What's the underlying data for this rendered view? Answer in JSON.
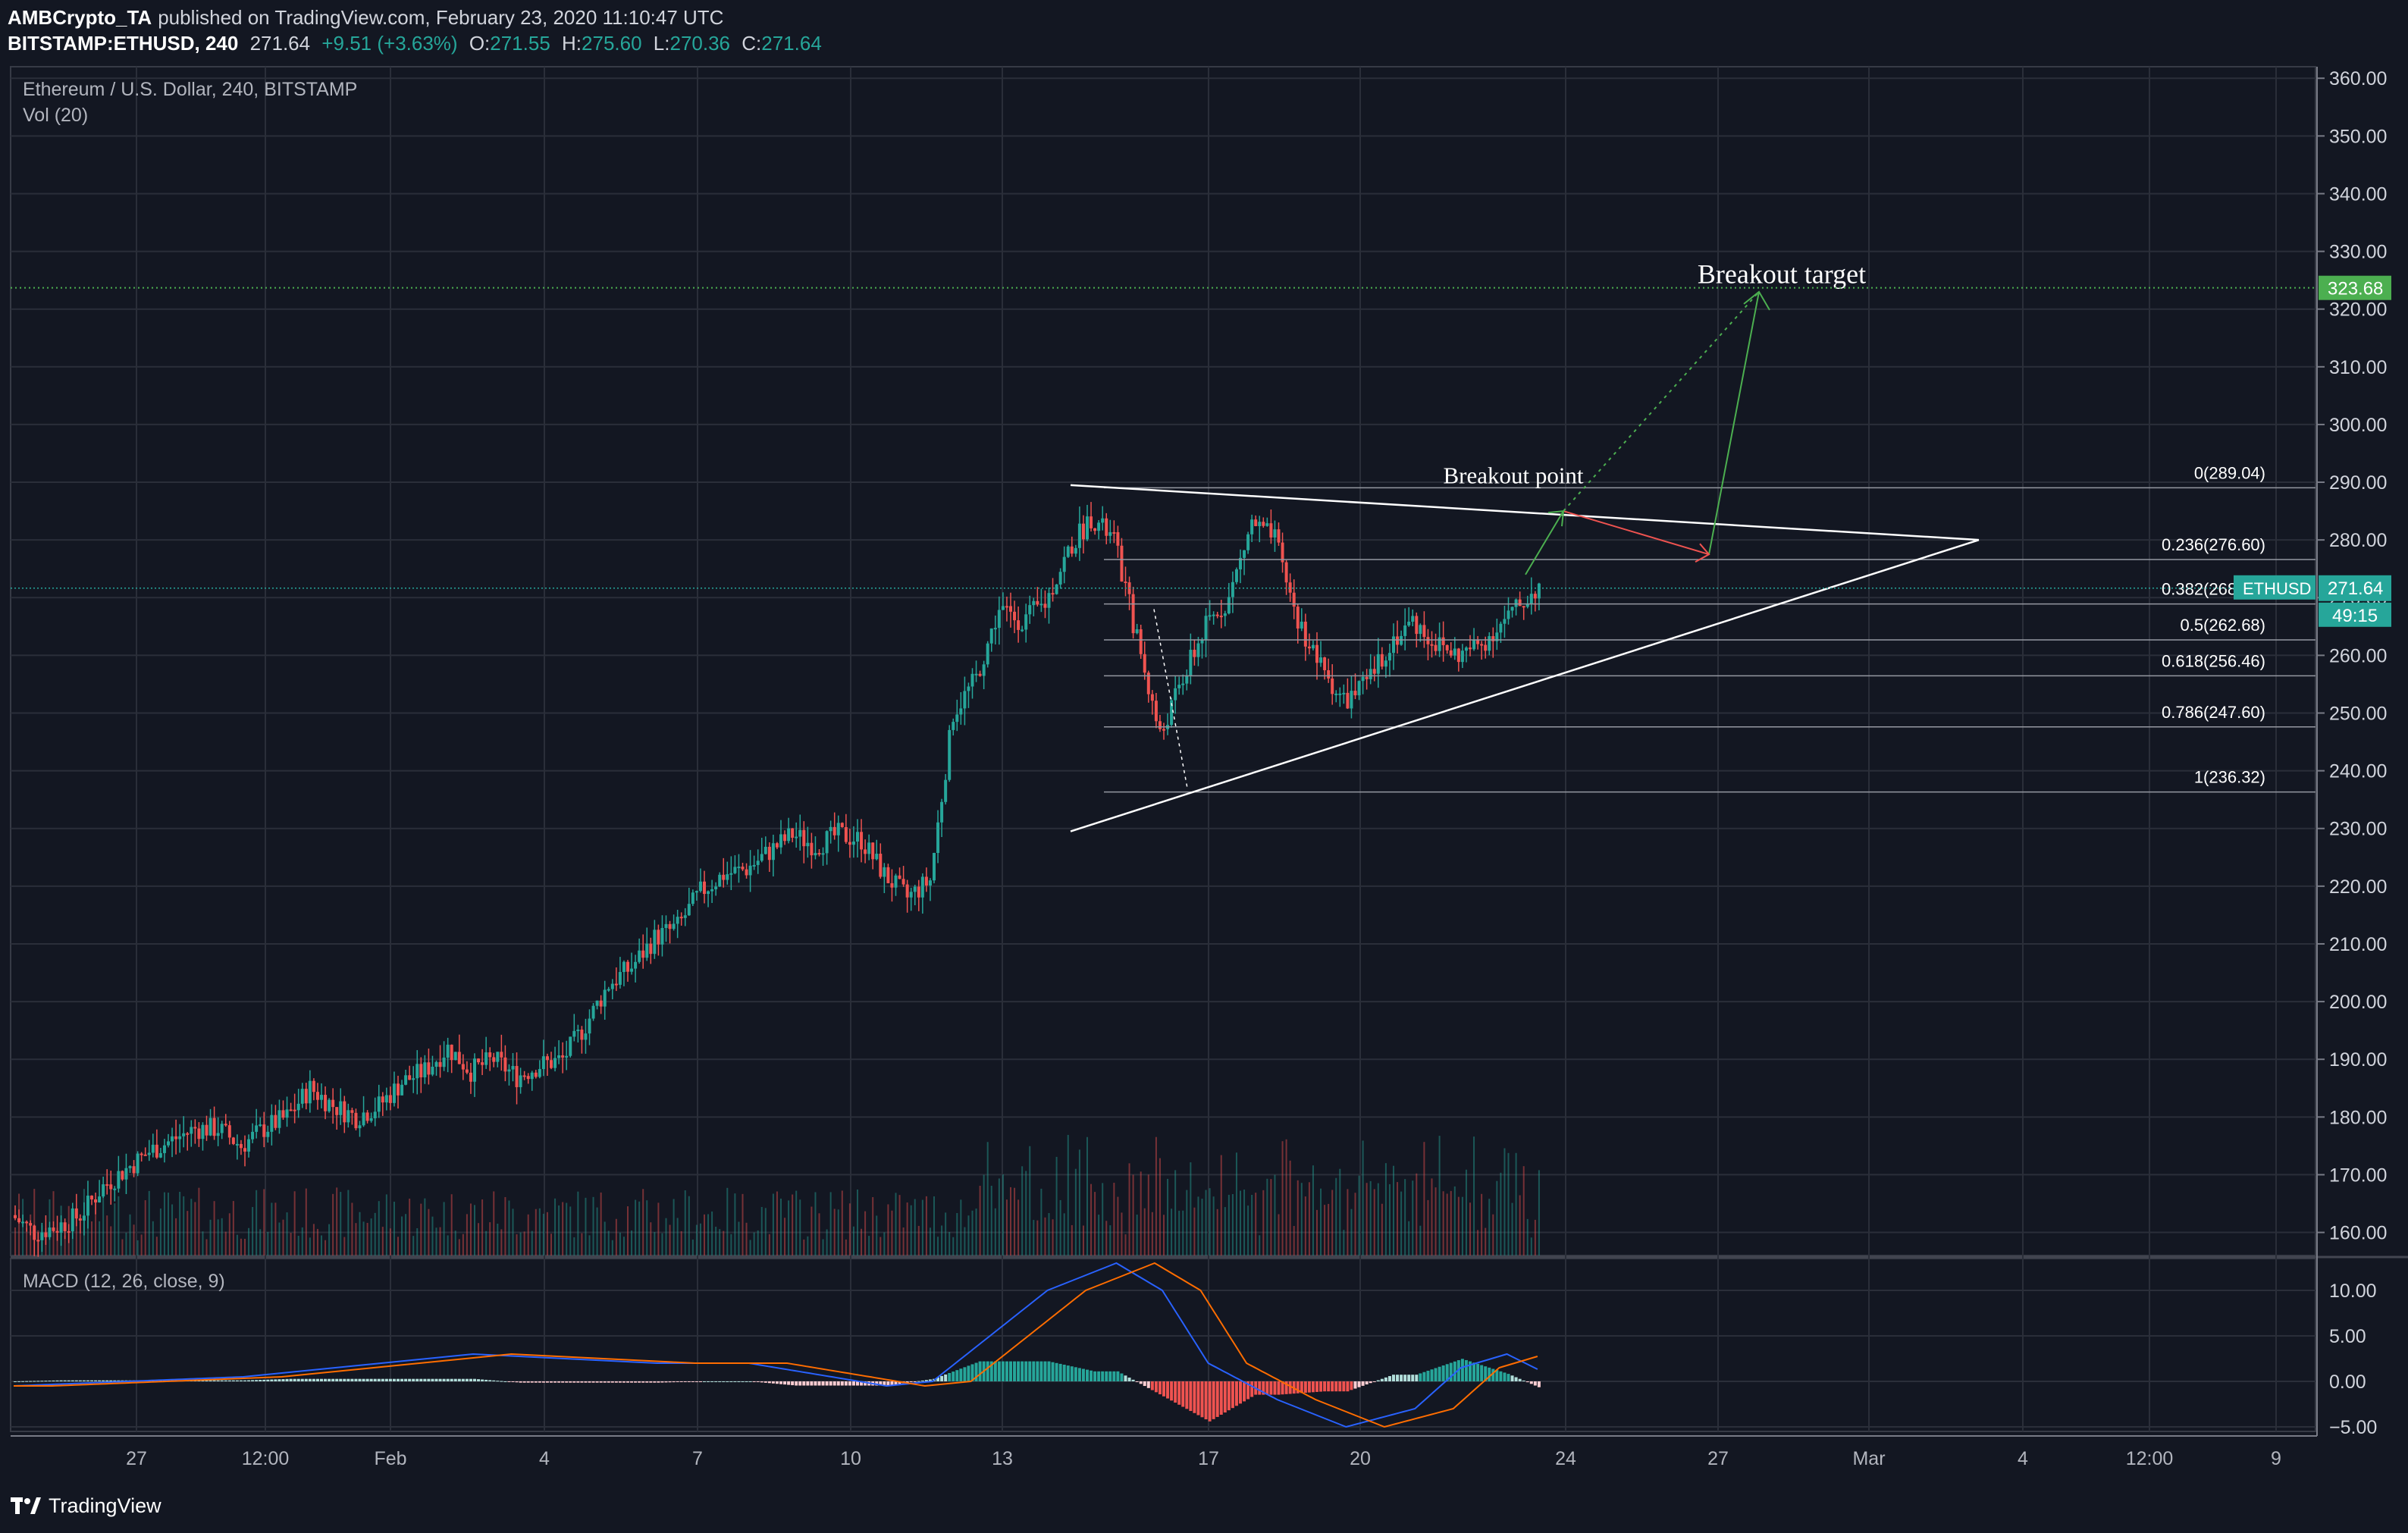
{
  "header": {
    "publisher": "AMBCrypto_TA",
    "published_text": "published on TradingView.com, February 23, 2020 11:10:47 UTC",
    "symbol": "BITSTAMP:ETHUSD, 240",
    "last": "271.64",
    "change": "+9.51 (+3.63%)",
    "open_label": "O:",
    "open": "271.55",
    "high_label": "H:",
    "high": "275.60",
    "low_label": "L:",
    "low": "270.36",
    "close_label": "C:",
    "close": "271.64"
  },
  "pane_legend": {
    "title": "Ethereum / U.S. Dollar, 240, BITSTAMP",
    "volume": "Vol (20)",
    "macd": "MACD (12, 26, close, 9)"
  },
  "footer": {
    "brand": "TradingView"
  },
  "colors": {
    "background": "#131722",
    "up": "#26a69a",
    "down": "#ef5350",
    "grid": "#2a2e39",
    "macd_line": "#2962ff",
    "signal_line": "#ff6d00",
    "target_line": "#4caf50"
  },
  "chart_data": {
    "type": "candlestick",
    "price_axis": {
      "ticks": [
        "360.00",
        "350.00",
        "340.00",
        "330.00",
        "320.00",
        "310.00",
        "300.00",
        "290.00",
        "280.00",
        "270.00",
        "260.00",
        "250.00",
        "240.00",
        "230.00",
        "220.00",
        "210.00",
        "200.00",
        "190.00",
        "180.00",
        "170.00",
        "160.00"
      ],
      "range": [
        156,
        362
      ]
    },
    "macd_axis": {
      "ticks": [
        "10.00",
        "5.00",
        "0.00",
        "−5.00"
      ],
      "range": [
        -5.5,
        13.5
      ]
    },
    "time_axis": {
      "ticks": [
        "27",
        "12:00",
        "Feb",
        "4",
        "7",
        "10",
        "13",
        "17",
        "20",
        "24",
        "27",
        "Mar",
        "4",
        "12:00",
        "9"
      ]
    },
    "last_price_label": "271.64",
    "symbol_label": "ETHUSD",
    "countdown_label": "49:15",
    "target_price_label": "323.68",
    "fib_levels": [
      {
        "label": "0(289.04)",
        "price": 289.04
      },
      {
        "label": "0.236(276.60)",
        "price": 276.6
      },
      {
        "label": "0.382(268.91)",
        "price": 268.91
      },
      {
        "label": "0.5(262.68)",
        "price": 262.68
      },
      {
        "label": "0.618(256.46)",
        "price": 256.46
      },
      {
        "label": "0.786(247.60)",
        "price": 247.6
      },
      {
        "label": "1(236.32)",
        "price": 236.32
      }
    ],
    "annotations": {
      "breakout_target": "Breakout target",
      "breakout_point": "Breakout point"
    },
    "price_path": [
      [
        0,
        163
      ],
      [
        6,
        160
      ],
      [
        12,
        161
      ],
      [
        18,
        163
      ],
      [
        24,
        168
      ],
      [
        30,
        171
      ],
      [
        36,
        174
      ],
      [
        42,
        176
      ],
      [
        48,
        178
      ],
      [
        54,
        178
      ],
      [
        60,
        175
      ],
      [
        66,
        178
      ],
      [
        72,
        180
      ],
      [
        78,
        185
      ],
      [
        84,
        182
      ],
      [
        90,
        180
      ],
      [
        96,
        182
      ],
      [
        102,
        186
      ],
      [
        108,
        188
      ],
      [
        114,
        192
      ],
      [
        120,
        188
      ],
      [
        126,
        190
      ],
      [
        132,
        187
      ],
      [
        138,
        189
      ],
      [
        144,
        190
      ],
      [
        150,
        196
      ],
      [
        156,
        203
      ],
      [
        162,
        206
      ],
      [
        168,
        211
      ],
      [
        174,
        213
      ],
      [
        180,
        219
      ],
      [
        186,
        222
      ],
      [
        192,
        223
      ],
      [
        198,
        226
      ],
      [
        204,
        229
      ],
      [
        210,
        227
      ],
      [
        216,
        229
      ],
      [
        222,
        228
      ],
      [
        228,
        222
      ],
      [
        234,
        218
      ],
      [
        240,
        221
      ],
      [
        246,
        250
      ],
      [
        252,
        256
      ],
      [
        258,
        268
      ],
      [
        264,
        266
      ],
      [
        270,
        269
      ],
      [
        276,
        278
      ],
      [
        282,
        284
      ],
      [
        288,
        280
      ],
      [
        294,
        263
      ],
      [
        300,
        246
      ],
      [
        306,
        256
      ],
      [
        312,
        265
      ],
      [
        318,
        270
      ],
      [
        324,
        283
      ],
      [
        330,
        280
      ],
      [
        336,
        266
      ],
      [
        342,
        258
      ],
      [
        348,
        252
      ],
      [
        354,
        255
      ],
      [
        360,
        262
      ],
      [
        366,
        266
      ],
      [
        372,
        262
      ],
      [
        378,
        260
      ],
      [
        384,
        262
      ],
      [
        390,
        266
      ],
      [
        396,
        270
      ],
      [
        399,
        272
      ]
    ],
    "macd_path": [
      [
        0,
        -0.5
      ],
      [
        60,
        0.5
      ],
      [
        96,
        2
      ],
      [
        120,
        3
      ],
      [
        168,
        2
      ],
      [
        192,
        2
      ],
      [
        228,
        -0.5
      ],
      [
        240,
        0
      ],
      [
        258,
        6
      ],
      [
        270,
        10
      ],
      [
        288,
        13
      ],
      [
        300,
        10
      ],
      [
        312,
        2
      ],
      [
        330,
        -2
      ],
      [
        348,
        -5
      ],
      [
        366,
        -3
      ],
      [
        378,
        1.5
      ],
      [
        390,
        3
      ],
      [
        402,
        0.5
      ],
      [
        414,
        -1.5
      ],
      [
        438,
        -1
      ],
      [
        474,
        0
      ],
      [
        486,
        1.5
      ],
      [
        498,
        0.5
      ],
      [
        528,
        -0.5
      ],
      [
        540,
        0
      ]
    ]
  }
}
